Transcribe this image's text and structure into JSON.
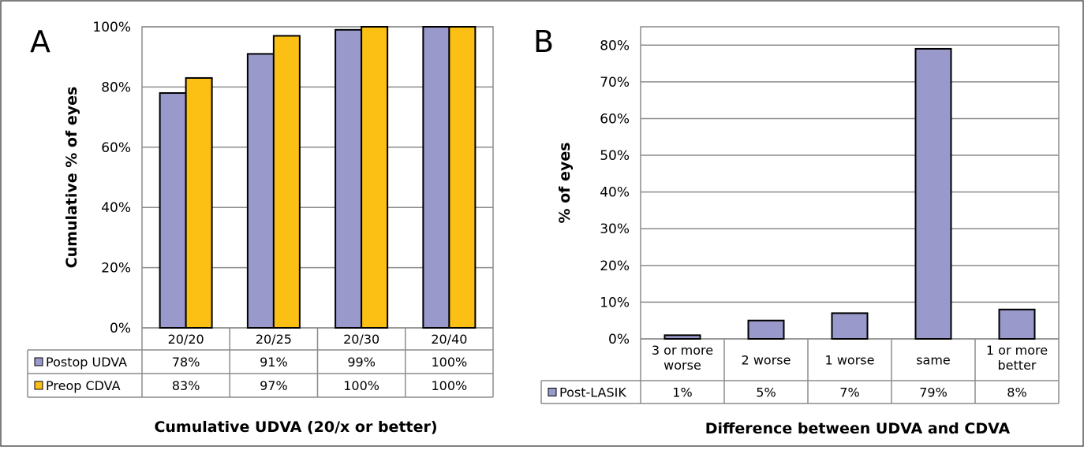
{
  "chart_data": [
    {
      "panel": "A",
      "type": "bar",
      "categories": [
        "20/20",
        "20/25",
        "20/30",
        "20/40"
      ],
      "series": [
        {
          "name": "Postop UDVA",
          "color": "#9999cc",
          "values": [
            78,
            91,
            99,
            100
          ],
          "labels": [
            "78%",
            "91%",
            "99%",
            "100%"
          ]
        },
        {
          "name": "Preop CDVA",
          "color": "#fcc015",
          "values": [
            83,
            97,
            100,
            100
          ],
          "labels": [
            "83%",
            "97%",
            "100%",
            "100%"
          ]
        }
      ],
      "yticks": [
        "0%",
        "20%",
        "40%",
        "60%",
        "80%",
        "100%"
      ],
      "ylim": [
        0,
        100
      ],
      "ylabel": "Cumulative % of eyes",
      "xlabel": "Cumulative UDVA (20/x or better)",
      "grid": true,
      "legend": "data-table"
    },
    {
      "panel": "B",
      "type": "bar",
      "categories": [
        "3 or more worse",
        "2 worse",
        "1 worse",
        "same",
        "1 or more better"
      ],
      "category_lines": [
        [
          "3 or more",
          "worse"
        ],
        [
          "2 worse"
        ],
        [
          "1 worse"
        ],
        [
          "same"
        ],
        [
          "1 or more",
          "better"
        ]
      ],
      "series": [
        {
          "name": "Post-LASIK",
          "color": "#9999cc",
          "values": [
            1,
            5,
            7,
            79,
            8
          ],
          "labels": [
            "1%",
            "5%",
            "7%",
            "79%",
            "8%"
          ]
        }
      ],
      "yticks": [
        "0%",
        "10%",
        "20%",
        "30%",
        "40%",
        "50%",
        "60%",
        "70%",
        "80%"
      ],
      "ylim": [
        0,
        85
      ],
      "ylabel": "% of eyes",
      "xlabel": "Difference between UDVA and CDVA",
      "grid": true,
      "legend": "data-table"
    }
  ]
}
